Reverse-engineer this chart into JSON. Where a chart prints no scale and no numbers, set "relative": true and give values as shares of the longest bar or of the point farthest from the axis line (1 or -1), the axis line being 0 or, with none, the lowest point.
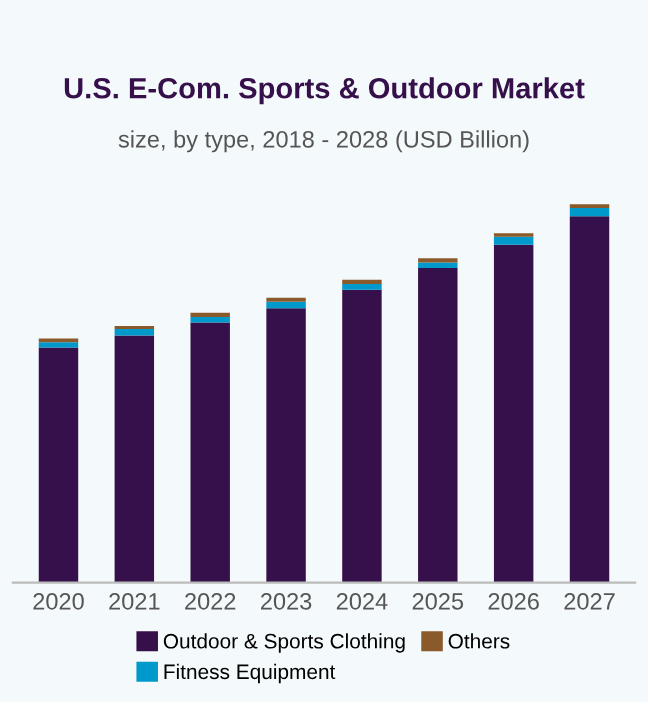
{
  "chart_data": {
    "type": "bar",
    "title": "U.S. E-Com. Sports & Outdoor Market",
    "subtitle": "size, by type, 2018 - 2028 (USD Billion)",
    "categories": [
      "2020",
      "2021",
      "2022",
      "2023",
      "2024",
      "2025",
      "2026",
      "2027"
    ],
    "stacked": true,
    "relative": true,
    "legend": "bottom",
    "grid": false,
    "series": [
      {
        "name": "Outdoor & Sports Clothing",
        "color": "#36104a",
        "values": [
          0.621,
          0.653,
          0.687,
          0.725,
          0.774,
          0.831,
          0.893,
          0.968
        ]
      },
      {
        "name": "Fitness Equipment",
        "color": "#0099cc",
        "values": [
          0.014,
          0.017,
          0.015,
          0.017,
          0.015,
          0.015,
          0.021,
          0.022
        ]
      },
      {
        "name": "Others",
        "color": "#8b5a2b",
        "values": [
          0.01,
          0.008,
          0.011,
          0.011,
          0.011,
          0.011,
          0.009,
          0.01
        ]
      }
    ]
  }
}
